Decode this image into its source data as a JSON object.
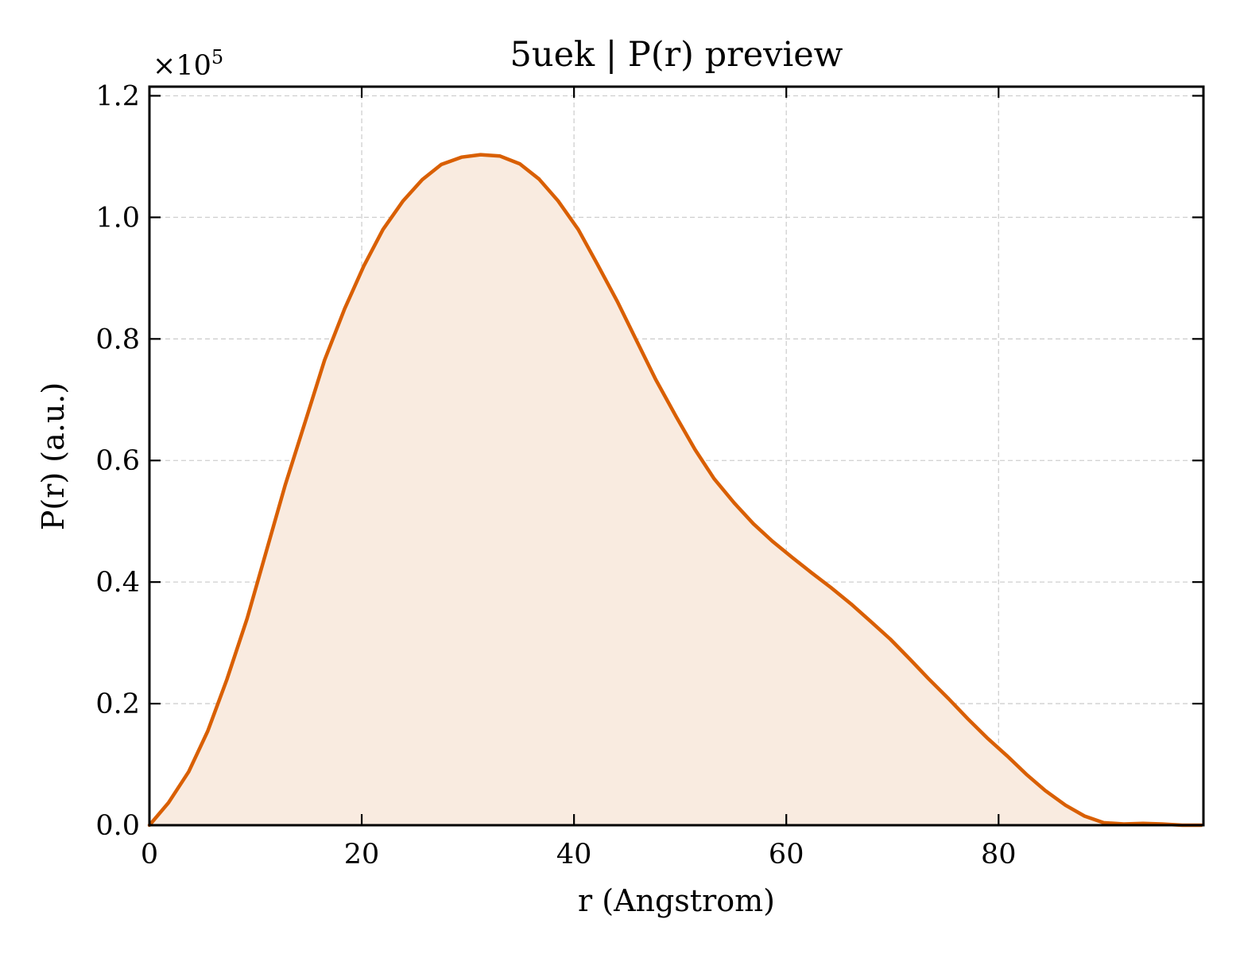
{
  "chart_data": {
    "type": "area",
    "title": "5uek | P(r) preview",
    "xlabel": "r (Angstrom)",
    "ylabel": "P(r) (a.u.)",
    "y_offset_label": "×10",
    "y_offset_exponent": "5",
    "xlim": [
      0,
      99.3
    ],
    "ylim": [
      0,
      1.215
    ],
    "x_ticks": [
      0,
      20,
      40,
      60,
      80
    ],
    "x_tick_labels": [
      "0",
      "20",
      "40",
      "60",
      "80"
    ],
    "y_ticks": [
      0.0,
      0.2,
      0.4,
      0.6,
      0.8,
      1.0,
      1.2
    ],
    "y_tick_labels": [
      "0.0",
      "0.2",
      "0.4",
      "0.6",
      "0.8",
      "1.0",
      "1.2"
    ],
    "grid": true,
    "line_color": "#d95f02",
    "fill_color": "#f9ebe0",
    "series": [
      {
        "x": [
          0,
          1.8,
          3.7,
          5.5,
          7.3,
          9.2,
          11.0,
          12.8,
          14.7,
          16.5,
          18.4,
          20.2,
          22.0,
          23.9,
          25.7,
          27.5,
          29.4,
          31.2,
          33.0,
          34.9,
          36.7,
          38.5,
          40.4,
          42.2,
          44.1,
          45.9,
          47.7,
          49.6,
          51.4,
          53.2,
          55.1,
          56.9,
          58.7,
          60.6,
          62.4,
          64.2,
          66.1,
          67.9,
          69.8,
          71.6,
          73.4,
          75.3,
          77.1,
          78.9,
          80.8,
          82.6,
          84.4,
          86.3,
          88.1,
          89.9,
          91.8,
          93.6,
          95.4,
          97.3,
          99.1
        ],
        "y": [
          0.0,
          0.037,
          0.088,
          0.155,
          0.24,
          0.34,
          0.45,
          0.56,
          0.665,
          0.765,
          0.85,
          0.92,
          0.98,
          1.027,
          1.062,
          1.087,
          1.099,
          1.103,
          1.101,
          1.088,
          1.063,
          1.027,
          0.98,
          0.923,
          0.861,
          0.797,
          0.733,
          0.673,
          0.618,
          0.57,
          0.53,
          0.496,
          0.467,
          0.44,
          0.415,
          0.391,
          0.364,
          0.336,
          0.306,
          0.274,
          0.241,
          0.208,
          0.175,
          0.144,
          0.114,
          0.084,
          0.057,
          0.033,
          0.015,
          0.004,
          0.002,
          0.003,
          0.002,
          0.0,
          0.0
        ]
      }
    ]
  }
}
